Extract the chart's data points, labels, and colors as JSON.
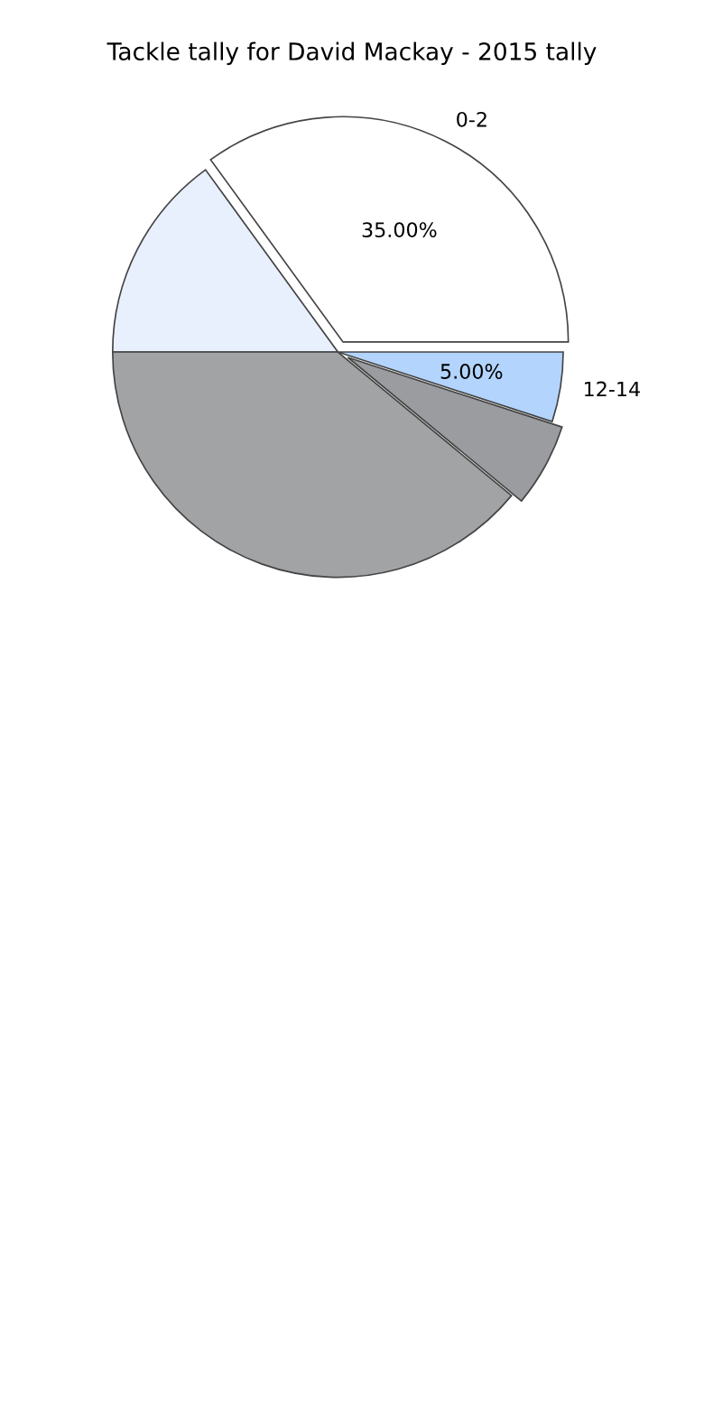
{
  "chart_data": {
    "type": "pie",
    "title": "Tackle tally for David Mackay - 2015 tally",
    "categories": [
      "0-2",
      null,
      null,
      null,
      "12-14"
    ],
    "values": [
      35,
      15,
      39,
      6,
      5
    ],
    "colors": [
      "#ffffff",
      "#e8f0fe",
      "#a2a3a5",
      "#9a9ca0",
      "#b3d4fc"
    ],
    "value_labels": [
      "35.00%",
      null,
      null,
      null,
      "5.00%"
    ]
  }
}
